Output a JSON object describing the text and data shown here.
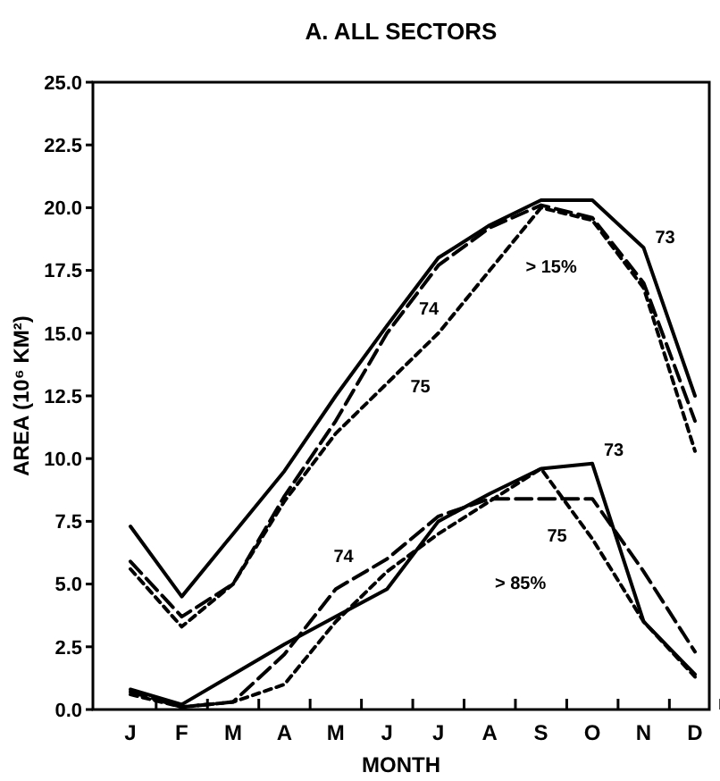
{
  "chart_data": {
    "type": "line",
    "title": "A. ALL SECTORS",
    "xlabel": "MONTH",
    "ylabel": "AREA (10⁶ KM²)",
    "categories": [
      "J",
      "F",
      "M",
      "A",
      "M",
      "J",
      "J",
      "A",
      "S",
      "O",
      "N",
      "D"
    ],
    "ylim": [
      0,
      25
    ],
    "yticks": [
      {
        "value": 0,
        "label": "0.0"
      },
      {
        "value": 2.5,
        "label": "2.5"
      },
      {
        "value": 5,
        "label": "5.0"
      },
      {
        "value": 7.5,
        "label": "7.5"
      },
      {
        "value": 10,
        "label": "10.0"
      },
      {
        "value": 12.5,
        "label": "12.5"
      },
      {
        "value": 15,
        "label": "15.0"
      },
      {
        "value": 17.5,
        "label": "17.5"
      },
      {
        "value": 20,
        "label": "20.0"
      },
      {
        "value": 22.5,
        "label": "22.5"
      },
      {
        "value": 25,
        "label": "25.0"
      }
    ],
    "grid": false,
    "legend": false,
    "marker": "none",
    "annotations": [
      "> 15%",
      "> 85%"
    ],
    "series": [
      {
        "name": "73",
        "color": "#000000",
        "line_style": "solid",
        "values": [
          7.3,
          4.5,
          7.0,
          9.5,
          12.5,
          15.3,
          18.0,
          19.3,
          20.3,
          20.3,
          18.4,
          12.5
        ]
      },
      {
        "name": "74",
        "color": "#000000",
        "line_style": "dashed",
        "values": [
          5.9,
          3.7,
          5.0,
          8.5,
          11.5,
          15.0,
          17.7,
          19.2,
          20.1,
          19.6,
          17.0,
          11.5
        ]
      },
      {
        "name": "75",
        "color": "#000000",
        "line_style": "dotted",
        "values": [
          5.6,
          3.3,
          5.0,
          8.3,
          11.0,
          13.0,
          15.0,
          17.5,
          20.0,
          19.5,
          16.8,
          10.3
        ]
      },
      {
        "name": "73",
        "color": "#000000",
        "line_style": "solid",
        "values": [
          0.8,
          0.2,
          1.4,
          2.6,
          3.7,
          4.8,
          7.5,
          8.6,
          9.6,
          9.8,
          3.5,
          1.4
        ]
      },
      {
        "name": "74",
        "color": "#000000",
        "line_style": "dashed",
        "values": [
          0.7,
          0.1,
          0.3,
          2.2,
          4.8,
          6.0,
          7.7,
          8.4,
          8.4,
          8.4,
          5.5,
          2.3
        ]
      },
      {
        "name": "75",
        "color": "#000000",
        "line_style": "dotted",
        "values": [
          0.6,
          0.1,
          0.3,
          1.0,
          3.5,
          5.5,
          7.0,
          8.3,
          9.6,
          6.8,
          3.5,
          1.3
        ]
      }
    ]
  }
}
